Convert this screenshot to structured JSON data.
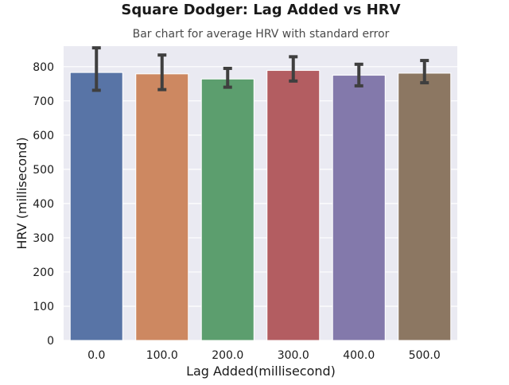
{
  "chart_data": {
    "type": "bar",
    "title": "Square Dodger: Lag Added vs HRV",
    "subtitle": "Bar chart for average HRV with standard error",
    "xlabel": "Lag Added(millisecond)",
    "ylabel": "HRV (millisecond)",
    "categories": [
      "0.0",
      "100.0",
      "200.0",
      "300.0",
      "400.0",
      "500.0"
    ],
    "values": [
      783,
      779,
      764,
      789,
      775,
      781
    ],
    "error_low": [
      731,
      733,
      740,
      758,
      744,
      753
    ],
    "error_high": [
      855,
      834,
      795,
      829,
      807,
      818
    ],
    "ylim": [
      0,
      860
    ],
    "yticks": [
      0,
      100,
      200,
      300,
      400,
      500,
      600,
      700,
      800
    ],
    "grid": true,
    "colors": [
      "#5874a6",
      "#cd8861",
      "#5c9e6e",
      "#b35d61",
      "#8379ab",
      "#8c7762"
    ],
    "background": "#eaeaf2",
    "errorbar_color": "#3f3f3f"
  }
}
